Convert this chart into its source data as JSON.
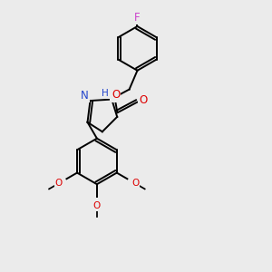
{
  "background_color": "#ebebeb",
  "bond_color": "#000000",
  "atom_colors": {
    "F": "#cc44cc",
    "N": "#2244cc",
    "O": "#dd0000",
    "H": "#2244cc"
  },
  "font_size": 8.5,
  "line_width": 1.4
}
